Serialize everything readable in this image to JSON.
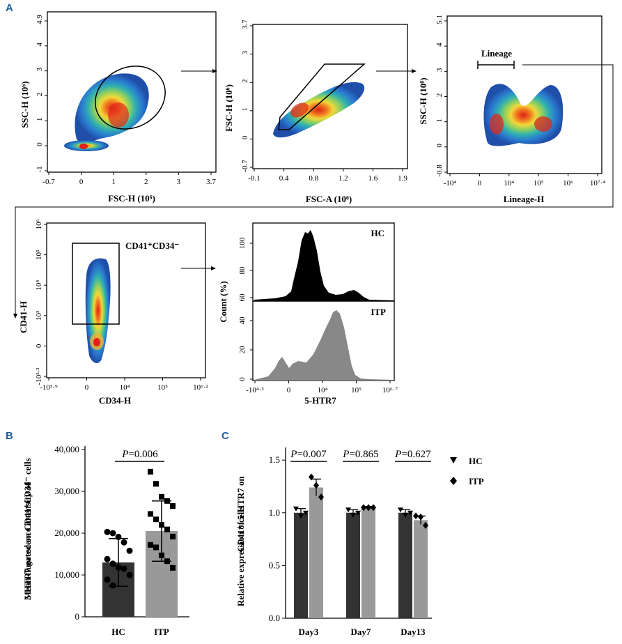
{
  "panels": {
    "a": "A",
    "b": "B",
    "c": "C"
  },
  "chart_data": [
    {
      "type": "scatter",
      "subtype": "density-plot",
      "xlabel": "FSC-H  (10⁶)",
      "ylabel": "SSC-H  (10⁶)",
      "xticks": [
        "-0.7",
        "0",
        "1",
        "2",
        "3",
        "3.7"
      ],
      "yticks": [
        "-1",
        "0",
        "1",
        "2",
        "3",
        "4",
        "4.9"
      ],
      "xlim": [
        -0.7,
        3.7
      ],
      "ylim": [
        -1,
        4.9
      ],
      "gate": "ellipse"
    },
    {
      "type": "scatter",
      "subtype": "density-plot",
      "xlabel": "FSC-A  (10⁶)",
      "ylabel": "FSC-H  (10⁶)",
      "xticks": [
        "-0.1",
        "0.4",
        "0.8",
        "1.2",
        "1.6",
        "1.9"
      ],
      "yticks": [
        "-0.7",
        "0",
        "1",
        "2",
        "3",
        "3.7"
      ],
      "xlim": [
        -0.1,
        1.9
      ],
      "ylim": [
        -0.7,
        3.7
      ],
      "gate": "polygon"
    },
    {
      "type": "scatter",
      "subtype": "density-plot",
      "xlabel": "Lineage-H",
      "ylabel": "SSC-H  (10⁶)",
      "xticks": [
        "-10⁴",
        "0",
        "10⁴",
        "10⁵",
        "10⁶",
        "10⁷·⁴"
      ],
      "yticks": [
        "-0.8",
        "0",
        "1",
        "2",
        "3",
        "4",
        "5.1"
      ],
      "gate_label": "Lineage"
    },
    {
      "type": "scatter",
      "subtype": "density-plot",
      "xlabel": "CD34-H",
      "ylabel": "CD41-H",
      "xticks": [
        "-10³·⁹",
        "0",
        "10⁴",
        "10⁵",
        "10⁶·²"
      ],
      "yticks": [
        "10⁶",
        "10⁵",
        "10⁴",
        "10³",
        "0",
        "-10³·³"
      ],
      "gate_label": "CD41⁺CD34⁻"
    },
    {
      "type": "area",
      "subtype": "histogram",
      "xlabel": "5-HTR7",
      "ylabel": "Count  (%)",
      "xticks": [
        "-10⁴·³",
        "0",
        "10⁴",
        "10⁵",
        "10⁶·⁷"
      ],
      "series": [
        {
          "name": "HC",
          "yticks": [
            "60",
            "80",
            "100"
          ],
          "color": "#000000"
        },
        {
          "name": "ITP",
          "yticks": [
            "0",
            "20",
            "40"
          ],
          "color": "#888888"
        }
      ]
    },
    {
      "type": "bar",
      "title": "",
      "ylabel": "Mean fluorescence intensity of 5-HTR7 gated on CD41⁺CD34⁻ cells",
      "categories": [
        "HC",
        "ITP"
      ],
      "values": [
        13000,
        20500
      ],
      "errors": [
        5700,
        7200
      ],
      "ylim": [
        0,
        40000
      ],
      "yticks": [
        "0",
        "10,000",
        "20,000",
        "30,000",
        "40,000"
      ],
      "yticks_num": [
        0,
        10000,
        20000,
        30000,
        40000
      ],
      "colors": [
        "#333333",
        "#999999"
      ],
      "points": [
        [
          20300,
          20000,
          19100,
          17800,
          15800,
          13800,
          12700,
          11800,
          11500,
          10000,
          8900,
          7500
        ],
        [
          34700,
          31800,
          28700,
          27700,
          26500,
          24600,
          23300,
          22000,
          20900,
          19200,
          17200,
          16600,
          14700,
          13300,
          11700
        ]
      ],
      "p_value": "=0.006",
      "p_symbol": "P"
    },
    {
      "type": "bar",
      "ylabel": "Relative expression of 5-HTR7 on CD41⁺ cells",
      "categories": [
        "Day3",
        "Day7",
        "Day13"
      ],
      "series": [
        {
          "name": "HC",
          "values": [
            1.0,
            1.0,
            1.0
          ],
          "errors": [
            0.04,
            0.03,
            0.03
          ],
          "color": "#333333",
          "marker": "▼",
          "points": [
            [
              1.04,
              0.97,
              1.0
            ],
            [
              1.03,
              0.98,
              1.0
            ],
            [
              1.03,
              0.98,
              1.0
            ]
          ]
        },
        {
          "name": "ITP",
          "values": [
            1.24,
            1.05,
            0.93
          ],
          "errors": [
            0.08,
            0.01,
            0.04
          ],
          "color": "#999999",
          "marker": "◆",
          "points": [
            [
              1.34,
              1.26,
              1.15
            ],
            [
              1.05,
              1.05,
              1.05
            ],
            [
              0.97,
              0.96,
              0.88
            ]
          ]
        }
      ],
      "ylim": [
        0,
        1.6
      ],
      "yticks": [
        "0.0",
        "0.5",
        "1.0",
        "1.5"
      ],
      "yticks_num": [
        0,
        0.5,
        1.0,
        1.5
      ],
      "p_values": [
        "=0.007",
        "=0.865",
        "=0.627"
      ],
      "p_symbol": "P"
    }
  ]
}
